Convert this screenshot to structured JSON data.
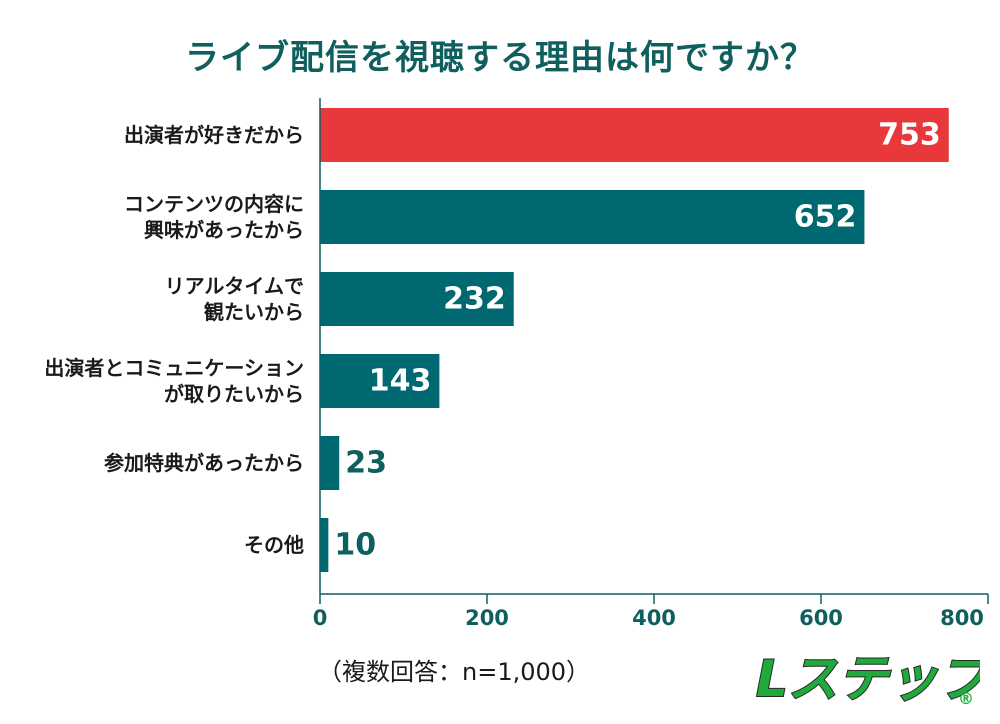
{
  "chart_data": {
    "type": "bar",
    "orientation": "horizontal",
    "title": "ライブ配信を視聴する理由は何ですか？",
    "categories": [
      [
        "出演者が好きだから"
      ],
      [
        "コンテンツの内容に",
        "興味があったから"
      ],
      [
        "リアルタイムで",
        "観たいから"
      ],
      [
        "出演者とコミュニケーション",
        "が取りたいから"
      ],
      [
        "参加特典があったから"
      ],
      [
        "その他"
      ]
    ],
    "values": [
      753,
      652,
      232,
      143,
      23,
      10
    ],
    "value_labels": [
      "753",
      "652",
      "232",
      "143",
      "23",
      "10"
    ],
    "xlim": [
      0,
      800
    ],
    "x_ticks": [
      0,
      200,
      400,
      600,
      800
    ],
    "x_tick_labels": [
      "0",
      "200",
      "400",
      "600",
      "800"
    ],
    "grid": false,
    "highlight_index": 0,
    "colors": {
      "highlight": "#e8383b",
      "bar": "#006870",
      "axis": "#0f5f5f",
      "title": "#0f5f5f",
      "logo": "#1faa3c"
    }
  },
  "note": "（複数回答：n=1,000）",
  "logo": {
    "text": "Lステップ",
    "mark": "®"
  }
}
